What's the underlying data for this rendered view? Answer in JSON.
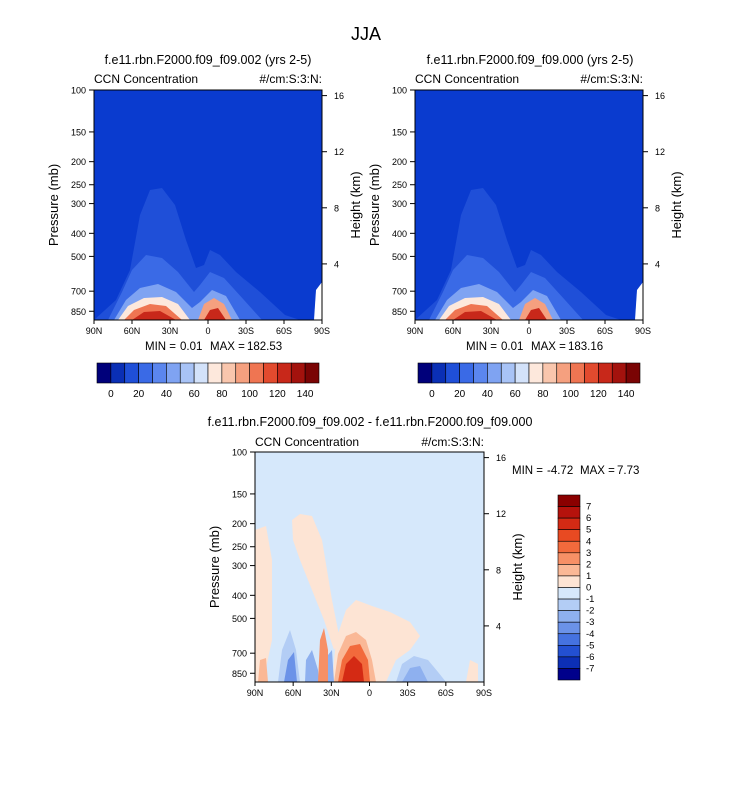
{
  "page_title": "JJA",
  "colors": {
    "background_fill": "#0a3bcf",
    "diff_background": "#d6e8fb",
    "warm_dark": "#8b0000",
    "cool_dark": "#00008b"
  },
  "chart_data": [
    {
      "type": "contour",
      "id": "panel1",
      "title": "f.e11.rbn.F2000.f09_f09.002 (yrs 2-5)",
      "left_label": "CCN Concentration",
      "right_label": "#/cm:S:3:N:",
      "xlabel": "",
      "ylabel": "Pressure (mb)",
      "ylabel_right": "Height (km)",
      "x_ticks": [
        "90N",
        "60N",
        "30N",
        "0",
        "30S",
        "60S",
        "90S"
      ],
      "x_values": [
        90,
        60,
        30,
        0,
        -30,
        -60,
        -90
      ],
      "y_ticks": [
        "100",
        "150",
        "200",
        "250",
        "300",
        "400",
        "500",
        "700",
        "850"
      ],
      "y_values": [
        100,
        150,
        200,
        250,
        300,
        400,
        500,
        700,
        850
      ],
      "ylim": [
        100,
        925
      ],
      "height_ticks": [
        "16",
        "12",
        "8",
        "4"
      ],
      "height_values": [
        16,
        12,
        8,
        4
      ],
      "stats": {
        "min_label": "MIN =",
        "min": "0.01",
        "max_label": "MAX =",
        "max": "182.53"
      },
      "colorbar": {
        "labels": [
          "0",
          "20",
          "40",
          "60",
          "80",
          "100",
          "120",
          "140"
        ],
        "levels": [
          0,
          10,
          20,
          30,
          40,
          50,
          60,
          70,
          80,
          90,
          100,
          110,
          120,
          130,
          140
        ],
        "colors": [
          "#00007a",
          "#0a2fb5",
          "#1f4fd8",
          "#3a6ae6",
          "#5b86ee",
          "#7fa3f2",
          "#a8c3f6",
          "#d3e2fa",
          "#fde8dc",
          "#f9c6ad",
          "#f5a07f",
          "#ef7552",
          "#e24a2e",
          "#c8281a",
          "#a3120d",
          "#7a0404"
        ]
      },
      "data_peak": {
        "lat": 36,
        "max_value": 182.53
      }
    },
    {
      "type": "contour",
      "id": "panel2",
      "title": "f.e11.rbn.F2000.f09_f09.000 (yrs 2-5)",
      "left_label": "CCN Concentration",
      "right_label": "#/cm:S:3:N:",
      "xlabel": "",
      "ylabel": "Pressure (mb)",
      "ylabel_right": "Height (km)",
      "x_ticks": [
        "90N",
        "60N",
        "30N",
        "0",
        "30S",
        "60S",
        "90S"
      ],
      "x_values": [
        90,
        60,
        30,
        0,
        -30,
        -60,
        -90
      ],
      "y_ticks": [
        "100",
        "150",
        "200",
        "250",
        "300",
        "400",
        "500",
        "700",
        "850"
      ],
      "y_values": [
        100,
        150,
        200,
        250,
        300,
        400,
        500,
        700,
        850
      ],
      "ylim": [
        100,
        925
      ],
      "height_ticks": [
        "16",
        "12",
        "8",
        "4"
      ],
      "height_values": [
        16,
        12,
        8,
        4
      ],
      "stats": {
        "min_label": "MIN =",
        "min": "0.01",
        "max_label": "MAX =",
        "max": "183.16"
      },
      "colorbar": {
        "labels": [
          "0",
          "20",
          "40",
          "60",
          "80",
          "100",
          "120",
          "140"
        ],
        "levels": [
          0,
          10,
          20,
          30,
          40,
          50,
          60,
          70,
          80,
          90,
          100,
          110,
          120,
          130,
          140
        ],
        "colors": [
          "#00007a",
          "#0a2fb5",
          "#1f4fd8",
          "#3a6ae6",
          "#5b86ee",
          "#7fa3f2",
          "#a8c3f6",
          "#d3e2fa",
          "#fde8dc",
          "#f9c6ad",
          "#f5a07f",
          "#ef7552",
          "#e24a2e",
          "#c8281a",
          "#a3120d",
          "#7a0404"
        ]
      },
      "data_peak": {
        "lat": 36,
        "max_value": 183.16
      }
    },
    {
      "type": "contour",
      "id": "panel3",
      "title": "f.e11.rbn.F2000.f09_f09.002 - f.e11.rbn.F2000.f09_f09.000",
      "left_label": "CCN Concentration",
      "right_label": "#/cm:S:3:N:",
      "xlabel": "",
      "ylabel": "Pressure (mb)",
      "ylabel_right": "Height (km)",
      "x_ticks": [
        "90N",
        "60N",
        "30N",
        "0",
        "30S",
        "60S",
        "90S"
      ],
      "x_values": [
        90,
        60,
        30,
        0,
        -30,
        -60,
        -90
      ],
      "y_ticks": [
        "100",
        "150",
        "200",
        "250",
        "300",
        "400",
        "500",
        "700",
        "850"
      ],
      "y_values": [
        100,
        150,
        200,
        250,
        300,
        400,
        500,
        700,
        850
      ],
      "ylim": [
        100,
        925
      ],
      "height_ticks": [
        "16",
        "12",
        "8",
        "4"
      ],
      "height_values": [
        16,
        12,
        8,
        4
      ],
      "stats": {
        "min_label": "MIN =",
        "min": "-4.72",
        "max_label": "MAX =",
        "max": "7.73"
      },
      "colorbar": {
        "labels": [
          "7",
          "6",
          "5",
          "4",
          "3",
          "2",
          "1",
          "0",
          "-1",
          "-2",
          "-3",
          "-4",
          "-5",
          "-6",
          "-7"
        ],
        "levels": [
          7,
          6,
          5,
          4,
          3,
          2,
          1,
          0,
          -1,
          -2,
          -3,
          -4,
          -5,
          -6,
          -7
        ],
        "colors": [
          "#8b0000",
          "#b5120c",
          "#d42a14",
          "#e84a22",
          "#f26a3c",
          "#f79066",
          "#fab896",
          "#fde4d4",
          "#d6e8fb",
          "#b3cdf5",
          "#8eb0ef",
          "#6b92e8",
          "#4572e0",
          "#2350d2",
          "#0c2fb6",
          "#00008b"
        ]
      }
    }
  ]
}
